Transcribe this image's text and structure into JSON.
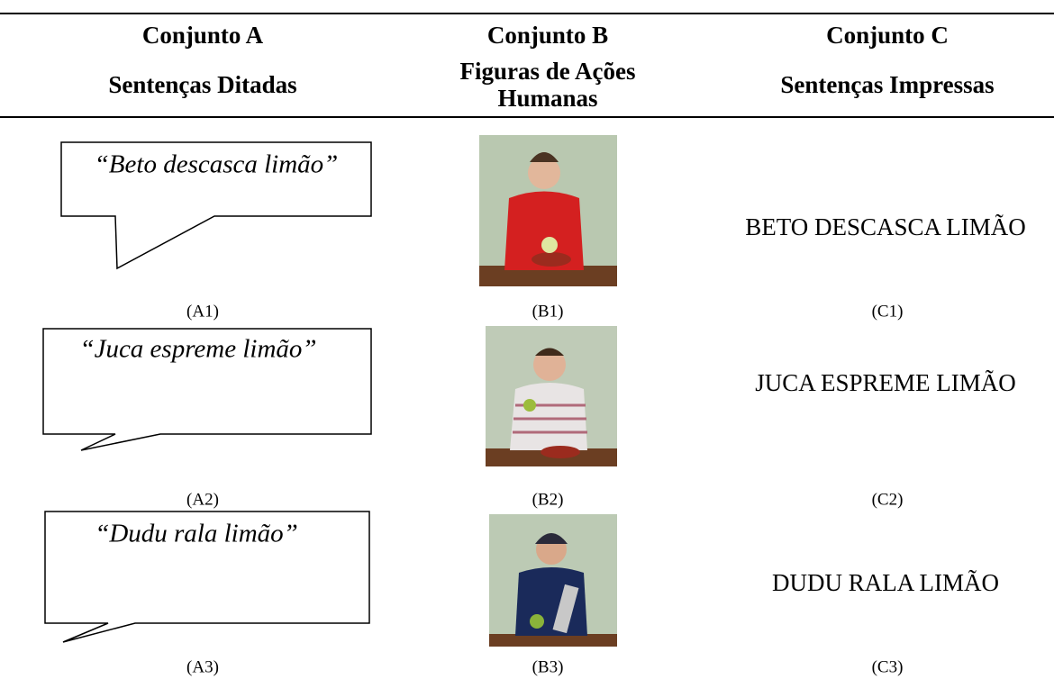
{
  "header": {
    "columns": [
      {
        "title": "Conjunto A",
        "subtitle": "Sentenças Ditadas"
      },
      {
        "title": "Conjunto B",
        "subtitle_lines": [
          "Figuras de Ações",
          "Humanas"
        ]
      },
      {
        "title": "Conjunto C",
        "subtitle": "Sentenças Impressas"
      }
    ]
  },
  "rows": [
    {
      "sentence": "“Beto descasca limão”",
      "sentence_label": "(A1)",
      "figure_label": "(B1)",
      "printed": "BETO DESCASCA LIMÃO",
      "printed_label": "(C1)"
    },
    {
      "sentence": "“Juca espreme limão”",
      "sentence_label": "(A2)",
      "figure_label": "(B2)",
      "printed": "JUCA ESPREME LIMÃO",
      "printed_label": "(C2)"
    },
    {
      "sentence": "“Dudu rala limão”",
      "sentence_label": "(A3)",
      "figure_label": "(B3)",
      "printed": "DUDU RALA LIMÃO",
      "printed_label": "(C3)"
    }
  ]
}
